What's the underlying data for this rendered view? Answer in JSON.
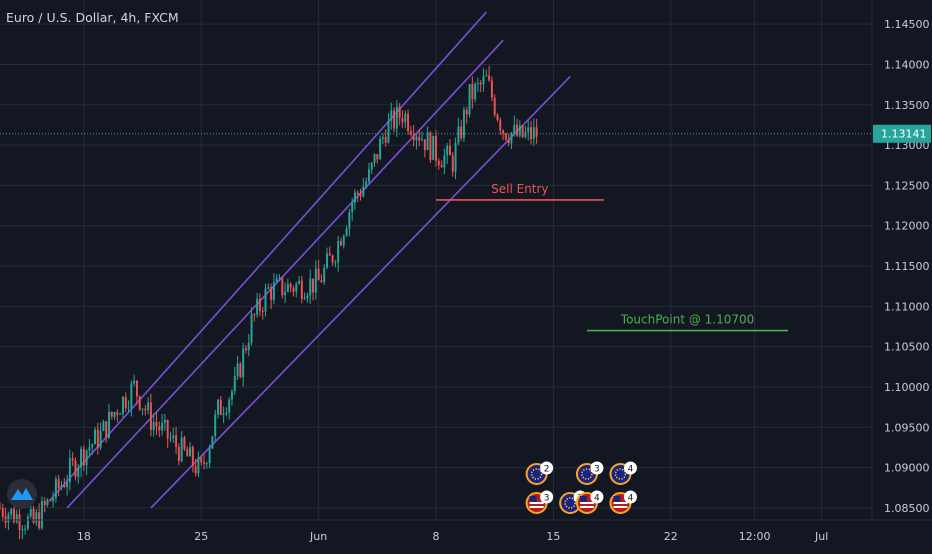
{
  "header": {
    "symbol_title": "Euro / U.S. Dollar, 4h, FXCM"
  },
  "colors": {
    "background": "#131722",
    "grid": "#262b3a",
    "up": "#26a69a",
    "down": "#ef5350",
    "channel": "#7b4fd8",
    "sell": "#ef5350",
    "touch": "#4caf50",
    "axis_text": "#c9ccd4",
    "price_label_bg": "#26a69a"
  },
  "chart_data": {
    "type": "candlestick",
    "title": "Euro / U.S. Dollar, 4h, FXCM",
    "xlabel": "",
    "ylabel": "",
    "x_range": [
      "2020-05-13",
      "2020-07-04"
    ],
    "ylim": [
      1.0835,
      1.148
    ],
    "grid": true,
    "x_ticks": [
      {
        "date": "2020-05-18",
        "label": "18"
      },
      {
        "date": "2020-05-25",
        "label": "25"
      },
      {
        "date": "2020-06-01",
        "label": "Jun"
      },
      {
        "date": "2020-06-08",
        "label": "8"
      },
      {
        "date": "2020-06-15",
        "label": "15"
      },
      {
        "date": "2020-06-22",
        "label": "22"
      },
      {
        "date": "2020-06-27",
        "label": "12:00"
      },
      {
        "date": "2020-07-01",
        "label": "Jul"
      }
    ],
    "y_ticks": [
      "1.08500",
      "1.09000",
      "1.09500",
      "1.10000",
      "1.10500",
      "1.11000",
      "1.11500",
      "1.12000",
      "1.12500",
      "1.13000",
      "1.13500",
      "1.14000",
      "1.14500"
    ],
    "y_tick_values": [
      1.085,
      1.09,
      1.095,
      1.1,
      1.105,
      1.11,
      1.115,
      1.12,
      1.125,
      1.13,
      1.135,
      1.14,
      1.145
    ],
    "last_price": {
      "value": 1.13141,
      "label": "1.13141"
    },
    "candles_start": "2020-05-13",
    "candles_per_day": 6,
    "close_path": [
      {
        "date": "2020-05-13",
        "close": 1.085
      },
      {
        "date": "2020-05-15",
        "close": 1.083
      },
      {
        "date": "2020-05-18",
        "close": 1.092
      },
      {
        "date": "2020-05-19",
        "close": 1.094
      },
      {
        "date": "2020-05-20",
        "close": 1.0975
      },
      {
        "date": "2020-05-21",
        "close": 1.1
      },
      {
        "date": "2020-05-22",
        "close": 1.096
      },
      {
        "date": "2020-05-25",
        "close": 1.0895
      },
      {
        "date": "2020-05-26",
        "close": 1.097
      },
      {
        "date": "2020-05-27",
        "close": 1.1
      },
      {
        "date": "2020-05-28",
        "close": 1.108
      },
      {
        "date": "2020-05-29",
        "close": 1.112
      },
      {
        "date": "2020-06-01",
        "close": 1.113
      },
      {
        "date": "2020-06-02",
        "close": 1.117
      },
      {
        "date": "2020-06-03",
        "close": 1.123
      },
      {
        "date": "2020-06-04",
        "close": 1.126
      },
      {
        "date": "2020-06-05",
        "close": 1.132
      },
      {
        "date": "2020-06-06",
        "close": 1.134
      },
      {
        "date": "2020-06-08",
        "close": 1.129
      },
      {
        "date": "2020-06-09",
        "close": 1.128
      },
      {
        "date": "2020-06-10",
        "close": 1.136
      },
      {
        "date": "2020-06-11",
        "close": 1.138
      },
      {
        "date": "2020-06-12",
        "close": 1.132
      },
      {
        "date": "2020-06-13",
        "close": 1.131
      },
      {
        "date": "2020-06-14",
        "close": 1.1314
      }
    ],
    "channel_lines": [
      {
        "from": {
          "date": "2020-05-16",
          "price": 1.086
        },
        "to": {
          "date": "2020-06-11",
          "price": 1.1465
        }
      },
      {
        "from": {
          "date": "2020-05-17",
          "price": 1.085
        },
        "to": {
          "date": "2020-06-12",
          "price": 1.143
        }
      },
      {
        "from": {
          "date": "2020-05-22",
          "price": 1.085
        },
        "to": {
          "date": "2020-06-16",
          "price": 1.1385
        }
      }
    ],
    "annotations": [
      {
        "text": "Sell Entry",
        "from_date": "2020-06-08",
        "to_date": "2020-06-18",
        "price": 1.1232,
        "color_key": "sell"
      },
      {
        "text": "TouchPoint @ 1.10700",
        "from_date": "2020-06-17",
        "to_date": "2020-06-29",
        "price": 1.107,
        "color_key": "touch"
      }
    ],
    "event_markers": [
      {
        "date": "2020-06-14",
        "row": 1,
        "flag": "eu",
        "count": "2"
      },
      {
        "date": "2020-06-17",
        "row": 1,
        "flag": "eu",
        "count": "3"
      },
      {
        "date": "2020-06-19",
        "row": 1,
        "flag": "eu",
        "count": "4"
      },
      {
        "date": "2020-06-14",
        "row": 2,
        "flag": "us",
        "count": "3"
      },
      {
        "date": "2020-06-16",
        "row": 2,
        "flag": "eu",
        "count": "3"
      },
      {
        "date": "2020-06-17",
        "row": 2,
        "flag": "us",
        "count": "4"
      },
      {
        "date": "2020-06-19",
        "row": 2,
        "flag": "us",
        "count": "4"
      }
    ]
  }
}
